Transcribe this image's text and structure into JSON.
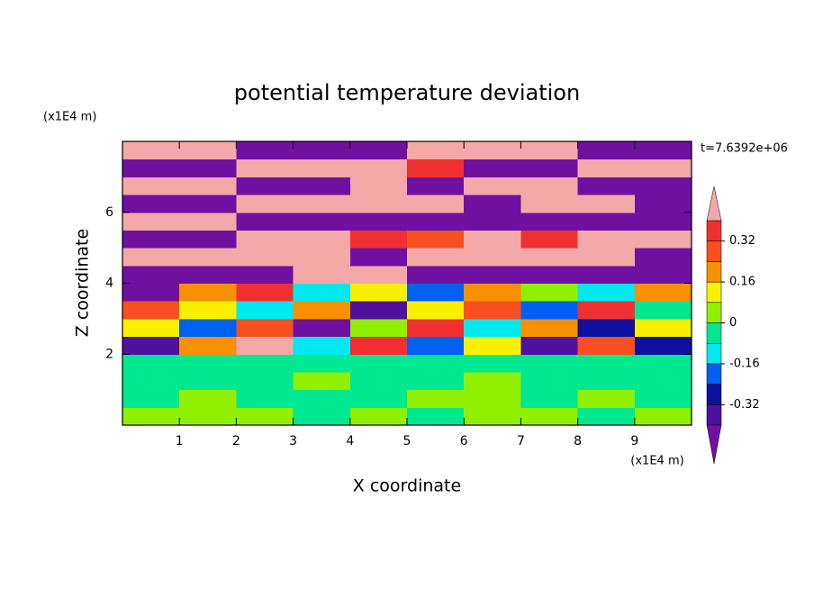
{
  "chart_data": {
    "type": "contour",
    "title": "potential temperature deviation",
    "x_label": "X coordinate",
    "y_label": "Z coordinate",
    "x_unit": "(x1E4 m)",
    "y_unit": "(x1E4 m)",
    "annotation": "t=7.6392e+06",
    "xlim": [
      0,
      10
    ],
    "ylim": [
      0,
      8
    ],
    "xticks": [
      1,
      2,
      3,
      4,
      5,
      6,
      7,
      8,
      9
    ],
    "yticks": [
      2,
      4,
      6
    ],
    "x": [
      0.5,
      1.5,
      2.5,
      3.5,
      4.5,
      5.5,
      6.5,
      7.5,
      8.5,
      9.5
    ],
    "y": [
      0.25,
      0.75,
      1.25,
      1.75,
      2.25,
      2.75,
      3.25,
      3.75,
      4.25,
      4.75,
      5.25,
      5.75,
      6.25,
      6.75,
      7.25,
      7.75
    ],
    "values": [
      [
        0.04,
        0.04,
        0.04,
        -0.04,
        0.04,
        -0.04,
        0.04,
        0.04,
        -0.04,
        0.04
      ],
      [
        -0.04,
        0.04,
        -0.04,
        -0.04,
        -0.04,
        0.04,
        0.04,
        -0.04,
        0.04,
        -0.04
      ],
      [
        -0.04,
        -0.04,
        -0.04,
        0.04,
        -0.04,
        -0.04,
        0.04,
        -0.04,
        -0.04,
        -0.04
      ],
      [
        -0.04,
        -0.04,
        -0.04,
        -0.04,
        -0.04,
        -0.04,
        -0.04,
        -0.04,
        -0.04,
        -0.04
      ],
      [
        -0.36,
        0.2,
        0.44,
        -0.12,
        0.36,
        -0.2,
        0.12,
        -0.36,
        0.28,
        -0.28
      ],
      [
        0.12,
        -0.2,
        0.28,
        -0.44,
        0.04,
        0.36,
        -0.12,
        0.2,
        -0.28,
        0.12
      ],
      [
        0.28,
        0.12,
        -0.12,
        0.2,
        -0.36,
        0.12,
        0.28,
        -0.2,
        0.36,
        -0.04
      ],
      [
        -0.44,
        0.2,
        0.36,
        -0.12,
        0.12,
        -0.2,
        0.2,
        0.04,
        -0.12,
        0.2
      ],
      [
        -0.44,
        -0.44,
        -0.44,
        0.44,
        0.44,
        -0.44,
        -0.44,
        -0.44,
        -0.44,
        -0.44
      ],
      [
        0.44,
        0.44,
        0.44,
        0.44,
        -0.44,
        0.44,
        0.44,
        0.44,
        0.44,
        -0.44
      ],
      [
        -0.44,
        -0.44,
        0.44,
        0.44,
        0.36,
        0.28,
        0.44,
        0.36,
        0.44,
        0.44
      ],
      [
        0.44,
        0.44,
        -0.44,
        -0.44,
        -0.44,
        -0.44,
        -0.44,
        -0.44,
        -0.44,
        -0.44
      ],
      [
        -0.44,
        -0.44,
        0.44,
        0.44,
        0.44,
        0.44,
        -0.44,
        0.44,
        0.44,
        -0.44
      ],
      [
        0.44,
        0.44,
        -0.44,
        -0.44,
        0.44,
        -0.44,
        0.44,
        0.44,
        -0.44,
        -0.44
      ],
      [
        -0.44,
        -0.44,
        0.44,
        0.44,
        0.44,
        0.36,
        -0.44,
        -0.44,
        0.44,
        0.44
      ],
      [
        0.44,
        0.44,
        -0.44,
        -0.44,
        -0.44,
        0.44,
        0.44,
        0.44,
        -0.44,
        -0.44
      ]
    ],
    "levels": [
      -0.4,
      -0.32,
      -0.24,
      -0.16,
      -0.08,
      0,
      0.08,
      0.16,
      0.24,
      0.32,
      0.4
    ],
    "colors": [
      "#7010a0",
      "#5010a0",
      "#1010a0",
      "#0060f0",
      "#00e8f0",
      "#00e890",
      "#90f000",
      "#f8f000",
      "#f89000",
      "#f85020",
      "#f03030",
      "#f4a8a8"
    ],
    "colorbar_ticks": [
      0.32,
      0.16,
      0,
      -0.16,
      -0.32
    ]
  }
}
